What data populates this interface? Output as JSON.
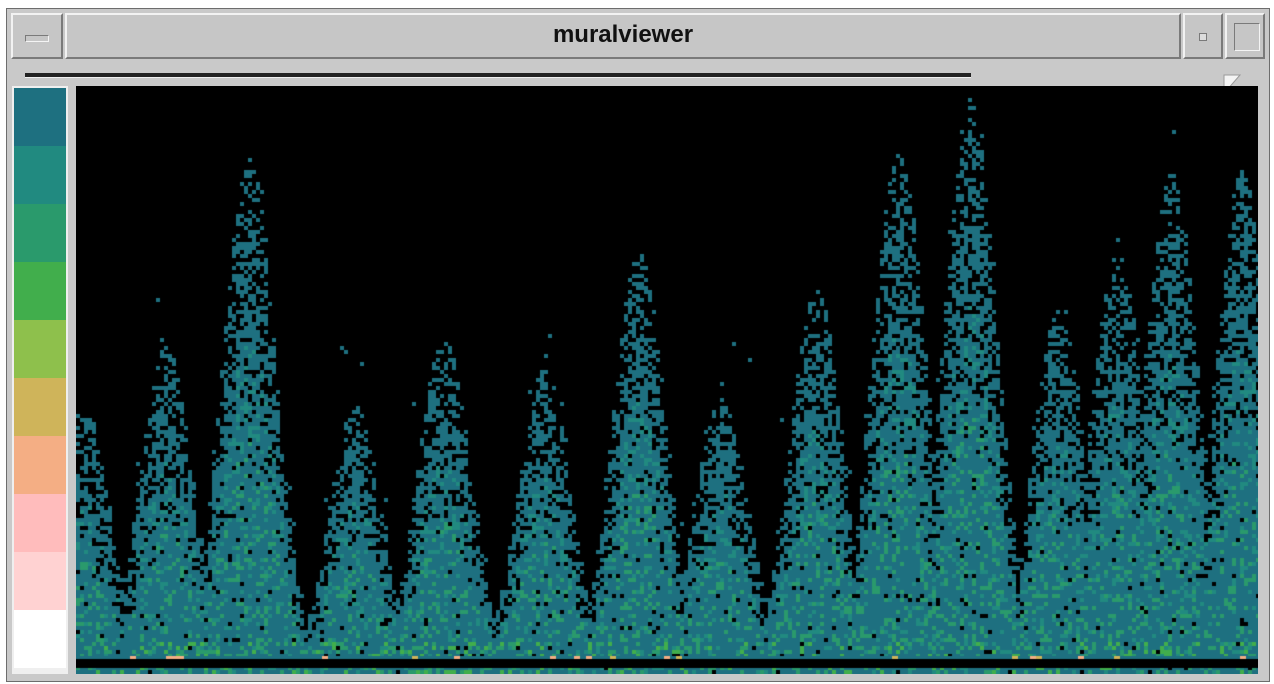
{
  "window": {
    "title": "muralviewer"
  },
  "icons": {
    "window_menu": "window-menu-icon",
    "minimize": "minimize-icon",
    "maximize": "maximize-icon",
    "slider_handle": "slider-handle-icon"
  },
  "colors": {
    "chrome": "#c6c6c6",
    "background": "#000000"
  },
  "legend": {
    "swatches": [
      "#1e7080",
      "#218a80",
      "#2a9a6c",
      "#41ae4c",
      "#8ec04c",
      "#cfb45a",
      "#f4ae84",
      "#ffbcbc",
      "#ffd2d2",
      "#ffffff"
    ]
  },
  "slider": {
    "position": 0.98
  },
  "mural": {
    "peaks_x_fraction": [
      0.005,
      0.075,
      0.145,
      0.235,
      0.31,
      0.395,
      0.475,
      0.545,
      0.625,
      0.695,
      0.755,
      0.83,
      0.88,
      0.925,
      0.985
    ],
    "peaks_height_fraction": [
      0.46,
      0.56,
      0.88,
      0.46,
      0.58,
      0.52,
      0.72,
      0.48,
      0.66,
      0.9,
      0.98,
      0.62,
      0.72,
      0.86,
      0.86
    ]
  }
}
